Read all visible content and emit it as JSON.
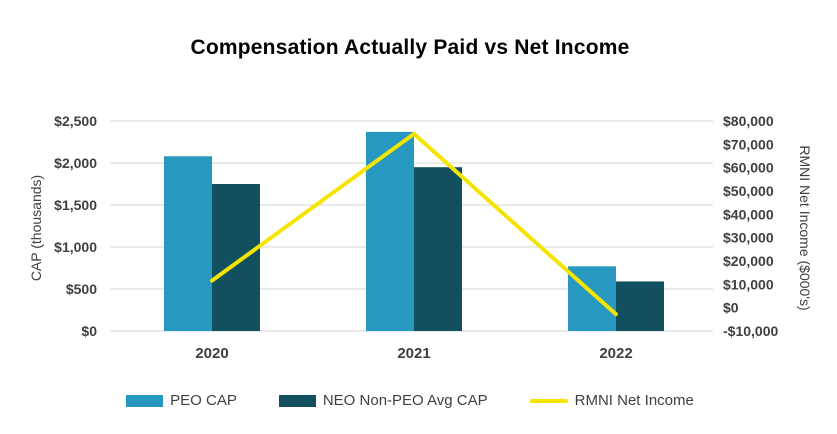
{
  "title": "Compensation Actually Paid vs Net Income",
  "chart_data": {
    "type": "combo-bar-line",
    "title": "Compensation Actually Paid vs Net Income",
    "categories": [
      "2020",
      "2021",
      "2022"
    ],
    "series": [
      {
        "name": "PEO CAP",
        "type": "bar",
        "axis": "left",
        "color": "#2799C1",
        "values": [
          2080,
          2370,
          770
        ]
      },
      {
        "name": "NEO Non-PEO Avg CAP",
        "type": "bar",
        "axis": "left",
        "color": "#12505F",
        "values": [
          1750,
          1950,
          590
        ]
      },
      {
        "name": "RMNI Net Income",
        "type": "line",
        "axis": "right",
        "color": "#F5E400",
        "values": [
          11600,
          74500,
          -2800
        ]
      }
    ],
    "left_axis": {
      "label": "CAP (thousands)",
      "min": 0,
      "max": 2500,
      "step": 500,
      "tick_labels": [
        "$0",
        "$500",
        "$1,000",
        "$1,500",
        "$2,000",
        "$2,500"
      ]
    },
    "right_axis": {
      "label": "RMNI Net Income ($000's)",
      "min": -10000,
      "max": 80000,
      "step": 10000,
      "tick_labels": [
        "-$10,000",
        "$0",
        "$10,000",
        "$20,000",
        "$30,000",
        "$40,000",
        "$50,000",
        "$60,000",
        "$70,000",
        "$80,000"
      ]
    },
    "grid": {
      "horizontal": true,
      "aligned_to": "left_axis",
      "color": "#D6D6D6"
    },
    "legend_position": "bottom"
  },
  "colors": {
    "background": "#FFFFFF",
    "title_text": "#000000",
    "axis_text": "#404040",
    "grid": "#D6D6D6",
    "peo_bar": "#2799C1",
    "neo_bar": "#12505F",
    "net_income_line": "#F5E400"
  }
}
